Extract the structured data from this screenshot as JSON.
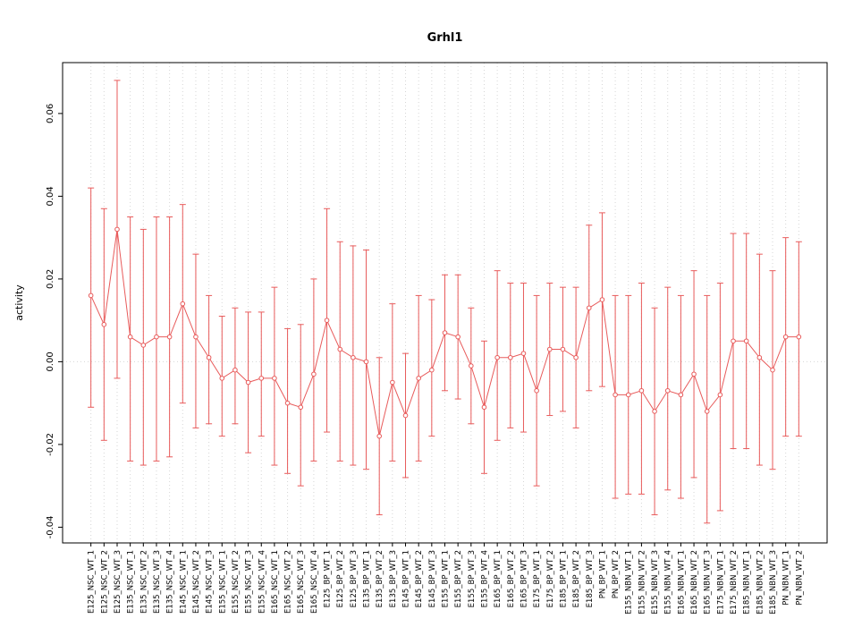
{
  "window": {
    "background": "#ffffff"
  },
  "colors": {
    "series": "#e85b5b",
    "grid": "#d6d6d6",
    "zero_line": "#d6d6d6",
    "axis": "#000000",
    "text": "#000000",
    "marker_fill": "#ffffff"
  },
  "chart_data": {
    "type": "line",
    "title": "Grhl1",
    "xlabel": "",
    "ylabel": "activity",
    "legend": "none",
    "grid": "vertical dotted line at every category; dotted horizontal reference line at y=0",
    "marker": "open-circle",
    "error_bars": true,
    "ylim": [
      -0.0438,
      0.0723
    ],
    "yticks": [
      -0.04,
      -0.02,
      0.0,
      0.02,
      0.04,
      0.06
    ],
    "categories": [
      "E125_NSC_WT_1",
      "E125_NSC_WT_2",
      "E125_NSC_WT_3",
      "E135_NSC_WT_1",
      "E135_NSC_WT_2",
      "E135_NSC_WT_3",
      "E135_NSC_WT_4",
      "E145_NSC_WT_1",
      "E145_NSC_WT_2",
      "E145_NSC_WT_3",
      "E155_NSC_WT_1",
      "E155_NSC_WT_2",
      "E155_NSC_WT_3",
      "E155_NSC_WT_4",
      "E165_NSC_WT_1",
      "E165_NSC_WT_2",
      "E165_NSC_WT_3",
      "E165_NSC_WT_4",
      "E125_BP_WT_1",
      "E125_BP_WT_2",
      "E125_BP_WT_3",
      "E135_BP_WT_1",
      "E135_BP_WT_2",
      "E135_BP_WT_3",
      "E145_BP_WT_1",
      "E145_BP_WT_2",
      "E145_BP_WT_3",
      "E155_BP_WT_1",
      "E155_BP_WT_2",
      "E155_BP_WT_3",
      "E155_BP_WT_4",
      "E165_BP_WT_1",
      "E165_BP_WT_2",
      "E165_BP_WT_3",
      "E175_BP_WT_1",
      "E175_BP_WT_2",
      "E185_BP_WT_1",
      "E185_BP_WT_2",
      "E185_BP_WT_3",
      "PN_BP_WT_1",
      "PN_BP_WT_2",
      "E155_NBN_WT_1",
      "E155_NBN_WT_2",
      "E155_NBN_WT_3",
      "E155_NBN_WT_4",
      "E165_NBN_WT_1",
      "E165_NBN_WT_2",
      "E165_NBN_WT_3",
      "E175_NBN_WT_1",
      "E175_NBN_WT_2",
      "E185_NBN_WT_1",
      "E185_NBN_WT_2",
      "E185_NBN_WT_3",
      "PN_NBN_WT_1",
      "PN_NBN_WT_2"
    ],
    "series": [
      {
        "name": "activity",
        "values": [
          0.016,
          0.009,
          0.032,
          0.006,
          0.004,
          0.006,
          0.006,
          0.014,
          0.006,
          0.001,
          -0.004,
          -0.002,
          -0.005,
          -0.004,
          -0.004,
          -0.01,
          -0.011,
          -0.003,
          0.01,
          0.003,
          0.001,
          0.0,
          -0.018,
          -0.005,
          -0.013,
          -0.004,
          -0.002,
          0.007,
          0.006,
          -0.001,
          -0.011,
          0.001,
          0.001,
          0.002,
          -0.007,
          0.003,
          0.003,
          0.001,
          0.013,
          0.015,
          -0.008,
          -0.008,
          -0.007,
          -0.012,
          -0.007,
          -0.008,
          -0.003,
          -0.012,
          -0.008,
          0.005,
          0.005,
          0.001,
          -0.002,
          0.006,
          0.006
        ],
        "lower": [
          -0.011,
          -0.019,
          -0.004,
          -0.024,
          -0.025,
          -0.024,
          -0.023,
          -0.01,
          -0.016,
          -0.015,
          -0.018,
          -0.015,
          -0.022,
          -0.018,
          -0.025,
          -0.027,
          -0.03,
          -0.024,
          -0.017,
          -0.024,
          -0.025,
          -0.026,
          -0.037,
          -0.024,
          -0.028,
          -0.024,
          -0.018,
          -0.007,
          -0.009,
          -0.015,
          -0.027,
          -0.019,
          -0.016,
          -0.017,
          -0.03,
          -0.013,
          -0.012,
          -0.016,
          -0.007,
          -0.006,
          -0.033,
          -0.032,
          -0.032,
          -0.037,
          -0.031,
          -0.033,
          -0.028,
          -0.039,
          -0.036,
          -0.021,
          -0.021,
          -0.025,
          -0.026,
          -0.018,
          -0.018
        ],
        "upper": [
          0.042,
          0.037,
          0.068,
          0.035,
          0.032,
          0.035,
          0.035,
          0.038,
          0.026,
          0.016,
          0.011,
          0.013,
          0.012,
          0.012,
          0.018,
          0.008,
          0.009,
          0.02,
          0.037,
          0.029,
          0.028,
          0.027,
          0.001,
          0.014,
          0.002,
          0.016,
          0.015,
          0.021,
          0.021,
          0.013,
          0.005,
          0.022,
          0.019,
          0.019,
          0.016,
          0.019,
          0.018,
          0.018,
          0.033,
          0.036,
          0.016,
          0.016,
          0.019,
          0.013,
          0.018,
          0.016,
          0.022,
          0.016,
          0.019,
          0.031,
          0.031,
          0.026,
          0.022,
          0.03,
          0.029
        ]
      }
    ]
  }
}
